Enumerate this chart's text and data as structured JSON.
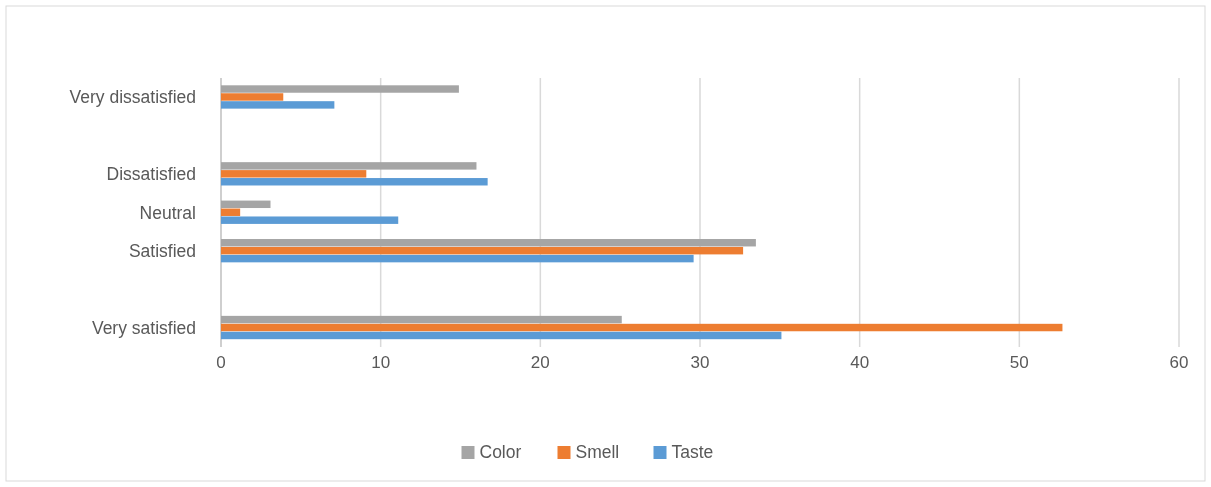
{
  "chart_data": {
    "type": "bar",
    "orientation": "horizontal",
    "categories": [
      "Very dissatisfied",
      null,
      "Dissatisfied",
      "Neutral",
      "Satisfied",
      null,
      "Very satisfied"
    ],
    "series": [
      {
        "name": "Color",
        "color": "#a5a5a5",
        "values": [
          14.9,
          null,
          16.0,
          3.1,
          33.5,
          null,
          25.1
        ]
      },
      {
        "name": "Smell",
        "color": "#ed7d31",
        "values": [
          3.9,
          null,
          9.1,
          1.2,
          32.7,
          null,
          52.7
        ]
      },
      {
        "name": "Taste",
        "color": "#5b9bd5",
        "values": [
          7.1,
          null,
          16.7,
          11.1,
          29.6,
          null,
          35.1
        ]
      }
    ],
    "xlim": [
      0,
      60
    ],
    "xticks": [
      0,
      10,
      20,
      30,
      40,
      50,
      60
    ],
    "grid": "x",
    "legend": "bottom"
  }
}
